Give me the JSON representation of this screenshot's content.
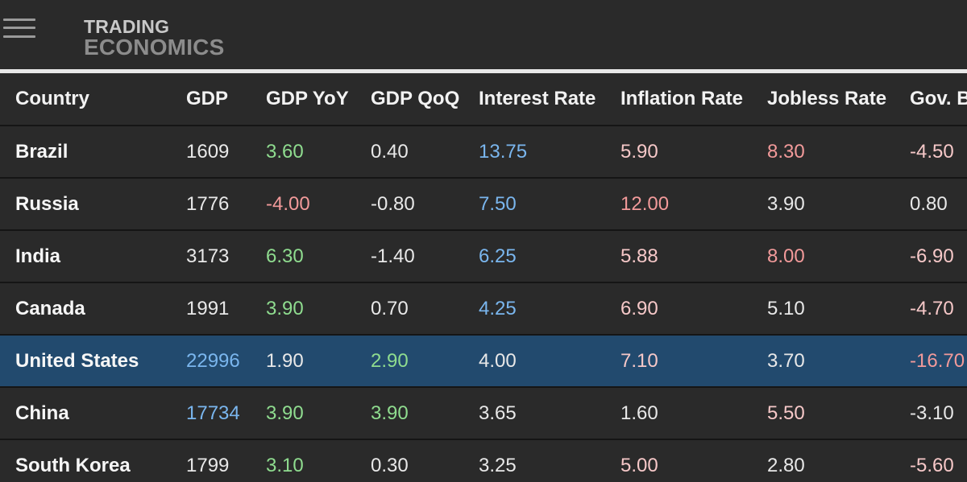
{
  "header": {
    "logo_line1": "TRADING",
    "logo_line2": "ECONOMICS"
  },
  "table": {
    "columns": [
      "Country",
      "GDP",
      "GDP YoY",
      "GDP QoQ",
      "Interest Rate",
      "Inflation Rate",
      "Jobless Rate",
      "Gov. B"
    ],
    "rows": [
      {
        "country": "Brazil",
        "gdp": "1609",
        "gdp_yoy": "3.60",
        "gdp_qoq": "0.40",
        "interest": "13.75",
        "inflation": "5.90",
        "jobless": "8.30",
        "gov": "-4.50"
      },
      {
        "country": "Russia",
        "gdp": "1776",
        "gdp_yoy": "-4.00",
        "gdp_qoq": "-0.80",
        "interest": "7.50",
        "inflation": "12.00",
        "jobless": "3.90",
        "gov": "0.80"
      },
      {
        "country": "India",
        "gdp": "3173",
        "gdp_yoy": "6.30",
        "gdp_qoq": "-1.40",
        "interest": "6.25",
        "inflation": "5.88",
        "jobless": "8.00",
        "gov": "-6.90"
      },
      {
        "country": "Canada",
        "gdp": "1991",
        "gdp_yoy": "3.90",
        "gdp_qoq": "0.70",
        "interest": "4.25",
        "inflation": "6.90",
        "jobless": "5.10",
        "gov": "-4.70"
      },
      {
        "country": "United States",
        "gdp": "22996",
        "gdp_yoy": "1.90",
        "gdp_qoq": "2.90",
        "interest": "4.00",
        "inflation": "7.10",
        "jobless": "3.70",
        "gov": "-16.70"
      },
      {
        "country": "China",
        "gdp": "17734",
        "gdp_yoy": "3.90",
        "gdp_qoq": "3.90",
        "interest": "3.65",
        "inflation": "1.60",
        "jobless": "5.50",
        "gov": "-3.10"
      },
      {
        "country": "South Korea",
        "gdp": "1799",
        "gdp_yoy": "3.10",
        "gdp_qoq": "0.30",
        "interest": "3.25",
        "inflation": "5.00",
        "jobless": "2.80",
        "gov": "-5.60"
      }
    ]
  },
  "colors": {
    "background": "#2a2a2a",
    "highlight_row": "#224a6e",
    "positive": "#8fdc8f",
    "negative": "#f29a9a",
    "blue": "#7ab6ee"
  }
}
